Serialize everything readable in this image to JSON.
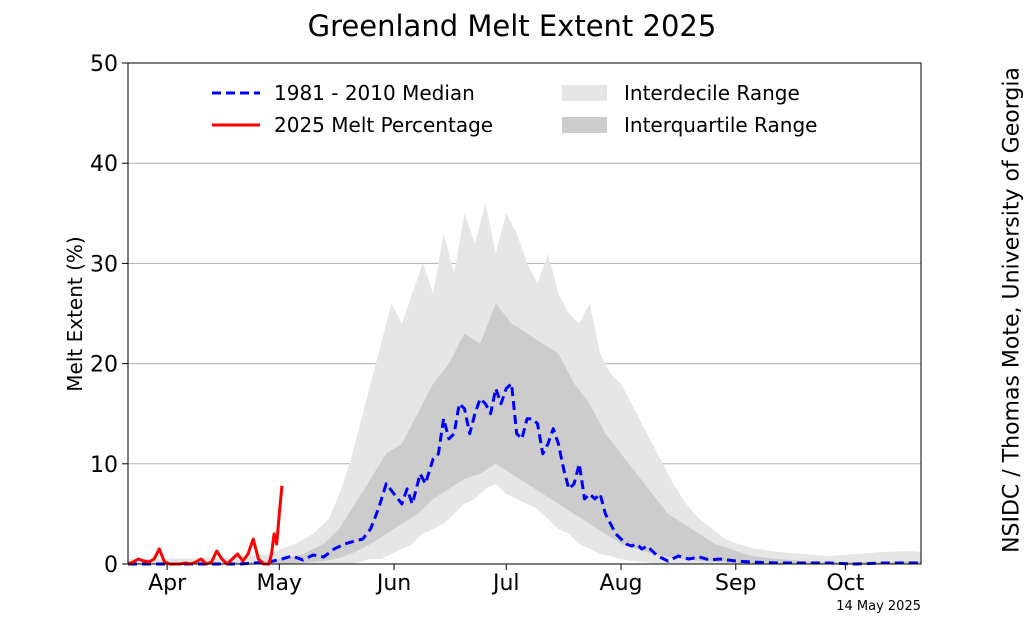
{
  "chart_data": {
    "type": "line",
    "title": "Greenland Melt Extent 2025",
    "ylabel": "Melt Extent (%)",
    "xlabel": "",
    "ylim": [
      0,
      50
    ],
    "yticks": [
      0,
      10,
      20,
      30,
      40,
      50
    ],
    "xlim": [
      1,
      305
    ],
    "month_ticks": [
      {
        "label": "Apr",
        "day": 16
      },
      {
        "label": "May",
        "day": 59
      },
      {
        "label": "Jun",
        "day": 103
      },
      {
        "label": "Jul",
        "day": 146
      },
      {
        "label": "Aug",
        "day": 190
      },
      {
        "label": "Sep",
        "day": 234
      },
      {
        "label": "Oct",
        "day": 276
      }
    ],
    "grid": "horizontal",
    "legend": {
      "position": "top",
      "entries": [
        {
          "label": "1981 - 2010 Median",
          "style": "dashed",
          "color": "#0000ff"
        },
        {
          "label": "2025 Melt Percentage",
          "style": "solid",
          "color": "#ff0000"
        },
        {
          "label": "Interdecile Range",
          "style": "fill",
          "color": "#e6e6e6"
        },
        {
          "label": "Interquartile Range",
          "style": "fill",
          "color": "#cccccc"
        }
      ]
    },
    "date_label": "14 May 2025",
    "credit": "NSIDC / Thomas Mote, University of Georgia",
    "series": [
      {
        "name": "1981 - 2010 Median",
        "color": "#0000ff",
        "style": "dashed",
        "x": [
          1,
          30,
          44,
          55,
          60,
          64,
          68,
          72,
          76,
          80,
          84,
          88,
          91,
          94,
          97,
          100,
          103,
          106,
          108,
          110,
          113,
          115,
          118,
          120,
          122,
          124,
          126,
          128,
          130,
          132,
          134,
          136,
          138,
          140,
          142,
          144,
          146,
          148,
          150,
          152,
          154,
          156,
          158,
          160,
          162,
          164,
          166,
          168,
          170,
          172,
          174,
          176,
          178,
          180,
          182,
          184,
          186,
          188,
          190,
          192,
          194,
          196,
          198,
          200,
          204,
          208,
          212,
          216,
          220,
          224,
          228,
          234,
          240,
          250,
          260,
          270,
          280,
          290,
          300,
          305
        ],
        "y": [
          0,
          0,
          0,
          0.2,
          0.5,
          0.8,
          0.4,
          0.9,
          0.7,
          1.5,
          2.0,
          2.3,
          2.5,
          3.5,
          5.5,
          8.0,
          7.0,
          6.0,
          7.5,
          6.0,
          9.0,
          8.0,
          10.5,
          11.0,
          14.5,
          12.5,
          13.0,
          16.0,
          15.5,
          13.0,
          15.0,
          16.5,
          16.0,
          15.0,
          17.5,
          16.0,
          17.5,
          18.0,
          13.0,
          12.5,
          14.5,
          14.5,
          14.0,
          11.0,
          12.0,
          13.5,
          12.0,
          9.5,
          7.5,
          8.0,
          10.0,
          6.5,
          7.0,
          6.5,
          7.0,
          5.0,
          4.0,
          3.0,
          2.5,
          2.0,
          1.8,
          2.0,
          1.5,
          1.8,
          0.8,
          0.3,
          0.8,
          0.5,
          0.7,
          0.4,
          0.5,
          0.3,
          0.2,
          0.1,
          0.1,
          0.1,
          0.0,
          0.1,
          0.1,
          0.1
        ]
      },
      {
        "name": "2025 Melt Percentage",
        "color": "#ff0000",
        "style": "solid",
        "x": [
          1,
          3,
          5,
          7,
          9,
          11,
          13,
          15,
          17,
          19,
          21,
          23,
          25,
          27,
          29,
          31,
          33,
          35,
          37,
          39,
          41,
          43,
          45,
          47,
          49,
          51,
          53,
          55,
          56,
          57,
          58,
          59,
          60
        ],
        "y": [
          0,
          0.2,
          0.5,
          0.3,
          0.2,
          0.5,
          1.5,
          0.2,
          0,
          0,
          0,
          0.1,
          0,
          0.2,
          0.5,
          0,
          0.2,
          1.3,
          0.5,
          0,
          0.5,
          1.0,
          0.3,
          1.0,
          2.5,
          0.5,
          0,
          0,
          1.0,
          3.0,
          2.0,
          5.0,
          7.8
        ]
      }
    ],
    "bands": [
      {
        "name": "Interdecile Range",
        "color": "#e6e6e6",
        "x": [
          1,
          40,
          55,
          65,
          72,
          78,
          82,
          86,
          90,
          94,
          98,
          102,
          106,
          110,
          114,
          118,
          122,
          126,
          130,
          134,
          138,
          142,
          146,
          150,
          154,
          158,
          162,
          166,
          170,
          174,
          178,
          182,
          186,
          190,
          194,
          198,
          202,
          206,
          210,
          215,
          220,
          225,
          230,
          235,
          240,
          250,
          260,
          270,
          280,
          290,
          300,
          305
        ],
        "lo": [
          0,
          0,
          0,
          0,
          0,
          0,
          0,
          0,
          0.2,
          0.5,
          0.5,
          1.0,
          1.5,
          2.0,
          3.0,
          3.5,
          4.0,
          5.0,
          6.0,
          6.5,
          7.5,
          8.0,
          7.0,
          6.5,
          6.0,
          5.5,
          4.5,
          3.5,
          3.0,
          2.0,
          1.5,
          1.0,
          0.8,
          0.5,
          0.3,
          0.2,
          0.1,
          0,
          0,
          0,
          0,
          0,
          0,
          0,
          0,
          0,
          0,
          0,
          0,
          0,
          0,
          0
        ],
        "hi": [
          0.5,
          0.6,
          1.0,
          2.0,
          3.0,
          4.5,
          7.0,
          10.0,
          14.0,
          18.0,
          22.0,
          26.0,
          24.0,
          27.0,
          30.0,
          27.0,
          33.0,
          29.0,
          35.0,
          32.0,
          36.0,
          31.0,
          35.0,
          33.0,
          30.0,
          28.0,
          31.0,
          27.0,
          25.0,
          24.0,
          26.0,
          21.0,
          19.0,
          18.0,
          16.0,
          14.0,
          12.0,
          10.0,
          8.0,
          6.0,
          4.5,
          3.5,
          2.5,
          2.0,
          1.6,
          1.2,
          1.0,
          0.8,
          1.0,
          1.2,
          1.3,
          1.2
        ]
      },
      {
        "name": "Interquartile Range",
        "color": "#cccccc",
        "x": [
          1,
          50,
          60,
          68,
          76,
          82,
          88,
          94,
          100,
          106,
          112,
          118,
          124,
          130,
          136,
          142,
          148,
          154,
          160,
          166,
          172,
          178,
          184,
          190,
          196,
          202,
          208,
          214,
          220,
          226,
          232,
          240,
          250,
          260,
          270,
          280,
          290,
          300,
          305
        ],
        "lo": [
          0,
          0,
          0,
          0.1,
          0.3,
          0.6,
          1.2,
          2.0,
          3.0,
          4.0,
          5.0,
          6.5,
          7.5,
          8.5,
          9.0,
          10.0,
          9.0,
          8.0,
          7.0,
          6.0,
          5.0,
          4.0,
          3.0,
          2.0,
          1.5,
          1.0,
          0.7,
          0.5,
          0.3,
          0.2,
          0.1,
          0,
          0,
          0,
          0,
          0,
          0,
          0,
          0
        ],
        "hi": [
          0.1,
          0.2,
          0.5,
          1.0,
          2.0,
          3.5,
          6.0,
          8.5,
          11.0,
          12.0,
          15.0,
          18.0,
          20.0,
          23.0,
          22.0,
          26.0,
          24.0,
          23.0,
          22.0,
          21.0,
          18.0,
          16.0,
          13.0,
          11.0,
          9.0,
          7.0,
          5.0,
          4.0,
          3.0,
          2.0,
          1.5,
          0.8,
          0.5,
          0.3,
          0.2,
          0.2,
          0.2,
          0.3,
          0.3
        ]
      }
    ]
  }
}
